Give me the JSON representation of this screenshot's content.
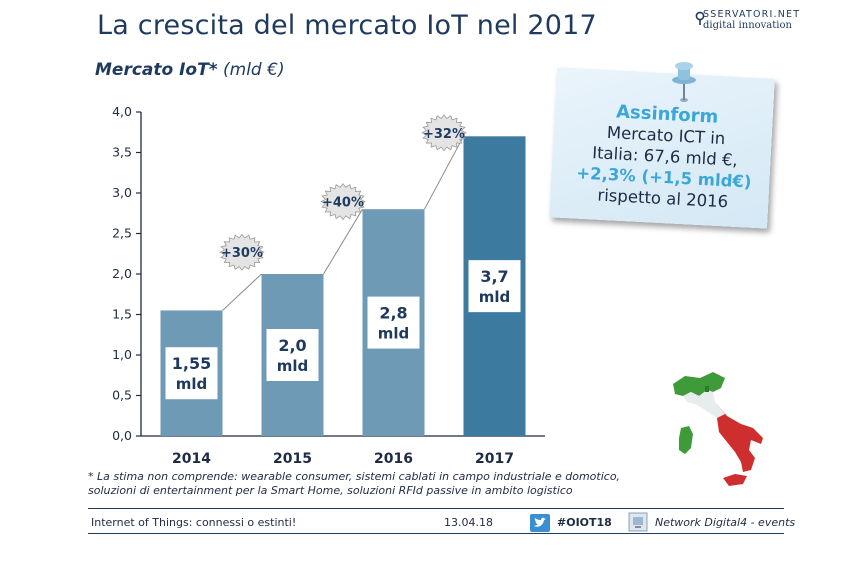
{
  "header": {
    "title": "La crescita del mercato IoT nel 2017",
    "logo_line1": "SSERVATORI.NET",
    "logo_line2": "digital innovation"
  },
  "subtitle": {
    "bold": "Mercato IoT*",
    "unit": "(mld €)"
  },
  "chart_data": {
    "type": "bar",
    "categories": [
      "2014",
      "2015",
      "2016",
      "2017"
    ],
    "values": [
      1.55,
      2.0,
      2.8,
      3.7
    ],
    "data_labels": [
      [
        "1,55",
        "mld"
      ],
      [
        "2,0",
        "mld"
      ],
      [
        "2,8",
        "mld"
      ],
      [
        "3,7",
        "mld"
      ]
    ],
    "growth_labels": [
      "+30%",
      "+40%",
      "+32%"
    ],
    "y_ticks": [
      "0,0",
      "0,5",
      "1,0",
      "1,5",
      "2,0",
      "2,5",
      "3,0",
      "3,5",
      "4,0"
    ],
    "ylim": [
      0,
      4
    ],
    "grid": false,
    "colors": [
      "#6f9ab5",
      "#6f9ab5",
      "#6f9ab5",
      "#3c7a9f"
    ]
  },
  "note": {
    "head": "Assinform",
    "line1": "Mercato ICT in",
    "line2": "Italia: 67,6 mld €,",
    "highlight": "+2,3% (+1,5 mld€)",
    "line4": "rispetto al 2016"
  },
  "footnote": {
    "line1": "* La stima non comprende: wearable consumer, sistemi cablati in campo industriale e domotico,",
    "line2": "soluzioni di entertainment per la Smart Home, soluzioni RFId passive in ambito logistico"
  },
  "footer": {
    "event": "Internet of Things: connessi o estinti!",
    "date": "13.04.18",
    "hashtag": "#OIOT18",
    "network": "Network Digital4 - events"
  }
}
